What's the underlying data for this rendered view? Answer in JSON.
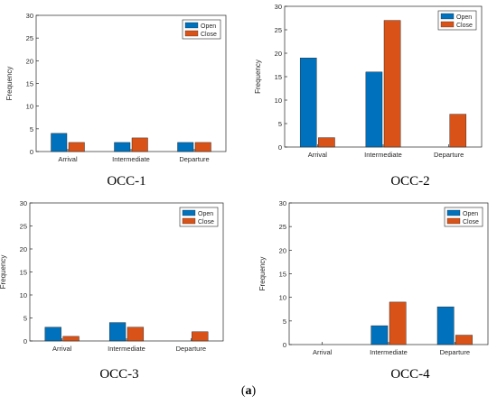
{
  "figure_label": {
    "open": "(",
    "letter": "a",
    "close": ")"
  },
  "chart_data": [
    {
      "type": "bar",
      "title": "",
      "caption": "OCC-1",
      "xlabel": "",
      "ylabel": "Frequency",
      "ylim": [
        0,
        30
      ],
      "yticks": [
        0,
        5,
        10,
        15,
        20,
        25,
        30
      ],
      "categories": [
        "Arrival",
        "Intermediate",
        "Departure"
      ],
      "series": [
        {
          "name": "Open",
          "values": [
            4,
            2,
            2
          ]
        },
        {
          "name": "Close",
          "values": [
            2,
            3,
            2
          ]
        }
      ],
      "legend_position": "top-right",
      "colors": [
        "#0072BD",
        "#D95319"
      ],
      "grid": false
    },
    {
      "type": "bar",
      "title": "",
      "caption": "OCC-2",
      "xlabel": "",
      "ylabel": "Frequency",
      "ylim": [
        0,
        30
      ],
      "yticks": [
        0,
        5,
        10,
        15,
        20,
        25,
        30
      ],
      "categories": [
        "Arrival",
        "Intermediate",
        "Departure"
      ],
      "series": [
        {
          "name": "Open",
          "values": [
            19,
            16,
            0
          ]
        },
        {
          "name": "Close",
          "values": [
            2,
            27,
            7
          ]
        }
      ],
      "legend_position": "top-right",
      "colors": [
        "#0072BD",
        "#D95319"
      ],
      "grid": false
    },
    {
      "type": "bar",
      "title": "",
      "caption": "OCC-3",
      "xlabel": "",
      "ylabel": "Frequency",
      "ylim": [
        0,
        30
      ],
      "yticks": [
        0,
        5,
        10,
        15,
        20,
        25,
        30
      ],
      "categories": [
        "Arrival",
        "Intermediate",
        "Departure"
      ],
      "series": [
        {
          "name": "Open",
          "values": [
            3,
            4,
            0
          ]
        },
        {
          "name": "Close",
          "values": [
            1,
            3,
            2
          ]
        }
      ],
      "legend_position": "top-right",
      "colors": [
        "#0072BD",
        "#D95319"
      ],
      "grid": false
    },
    {
      "type": "bar",
      "title": "",
      "caption": "OCC-4",
      "xlabel": "",
      "ylabel": "Frequency",
      "ylim": [
        0,
        30
      ],
      "yticks": [
        0,
        5,
        10,
        15,
        20,
        25,
        30
      ],
      "categories": [
        "Arrival",
        "Intermediate",
        "Departure"
      ],
      "series": [
        {
          "name": "Open",
          "values": [
            0,
            4,
            8
          ]
        },
        {
          "name": "Close",
          "values": [
            0,
            9,
            2
          ]
        }
      ],
      "legend_position": "top-right",
      "colors": [
        "#0072BD",
        "#D95319"
      ],
      "grid": false
    }
  ]
}
